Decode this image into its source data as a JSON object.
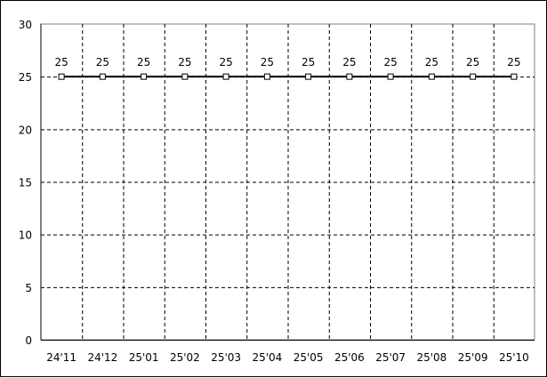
{
  "chart_data": {
    "type": "line",
    "categories": [
      "24'11",
      "24'12",
      "25'01",
      "25'02",
      "25'03",
      "25'04",
      "25'05",
      "25'06",
      "25'07",
      "25'08",
      "25'09",
      "25'10"
    ],
    "series": [
      {
        "values": [
          25,
          25,
          25,
          25,
          25,
          25,
          25,
          25,
          25,
          25,
          25,
          25
        ],
        "color": "#000000",
        "marker": "square"
      }
    ],
    "data_labels": [
      "25",
      "25",
      "25",
      "25",
      "25",
      "25",
      "25",
      "25",
      "25",
      "25",
      "25",
      "25"
    ],
    "ylim": [
      0,
      30
    ],
    "yticks": [
      "0",
      "5",
      "10",
      "15",
      "20",
      "25",
      "30"
    ],
    "grid": true,
    "title": "",
    "xlabel": "",
    "ylabel": ""
  }
}
